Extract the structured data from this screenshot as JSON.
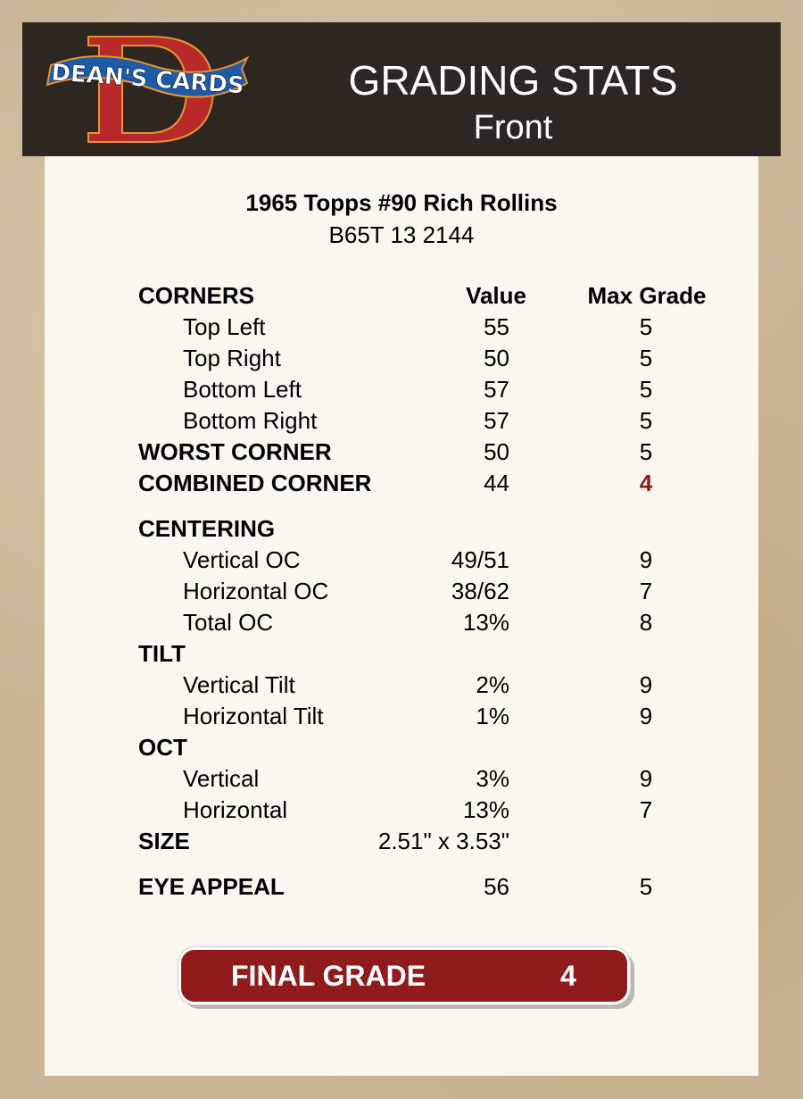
{
  "header": {
    "logo_text": "DEAN'S CARDS",
    "title": "GRADING STATS",
    "subtitle": "Front"
  },
  "card": {
    "name": "1965 Topps #90 Rich Rollins",
    "code": "B65T 13 2144"
  },
  "columns": {
    "value": "Value",
    "max_grade": "Max Grade"
  },
  "rows": [
    {
      "label": "CORNERS",
      "value": "",
      "max": ""
    },
    {
      "label": "Top Left",
      "value": "55",
      "max": "5"
    },
    {
      "label": "Top Right",
      "value": "50",
      "max": "5"
    },
    {
      "label": "Bottom Left",
      "value": "57",
      "max": "5"
    },
    {
      "label": "Bottom Right",
      "value": "57",
      "max": "5"
    },
    {
      "label": "WORST CORNER",
      "value": "50",
      "max": "5"
    },
    {
      "label": "COMBINED CORNER",
      "value": "44",
      "max": "4"
    },
    {
      "label": "CENTERING",
      "value": "",
      "max": ""
    },
    {
      "label": "Vertical OC",
      "value": "49/51",
      "max": "9"
    },
    {
      "label": "Horizontal OC",
      "value": "38/62",
      "max": "7"
    },
    {
      "label": "Total OC",
      "value": "13%",
      "max": "8"
    },
    {
      "label": "TILT",
      "value": "",
      "max": ""
    },
    {
      "label": "Vertical Tilt",
      "value": "2%",
      "max": "9"
    },
    {
      "label": "Horizontal Tilt",
      "value": "1%",
      "max": "9"
    },
    {
      "label": "OCT",
      "value": "",
      "max": ""
    },
    {
      "label": "Vertical",
      "value": "3%",
      "max": "9"
    },
    {
      "label": "Horizontal",
      "value": "13%",
      "max": "7"
    },
    {
      "label": "SIZE",
      "value": "2.51\" x 3.53\"",
      "max": ""
    },
    {
      "label": "EYE APPEAL",
      "value": "56",
      "max": "5"
    }
  ],
  "final": {
    "label": "FINAL GRADE",
    "value": "4"
  },
  "colors": {
    "header_bg": "#2e2620",
    "card_bg": "#fcf7ee",
    "accent_red": "#8f1b1d"
  }
}
